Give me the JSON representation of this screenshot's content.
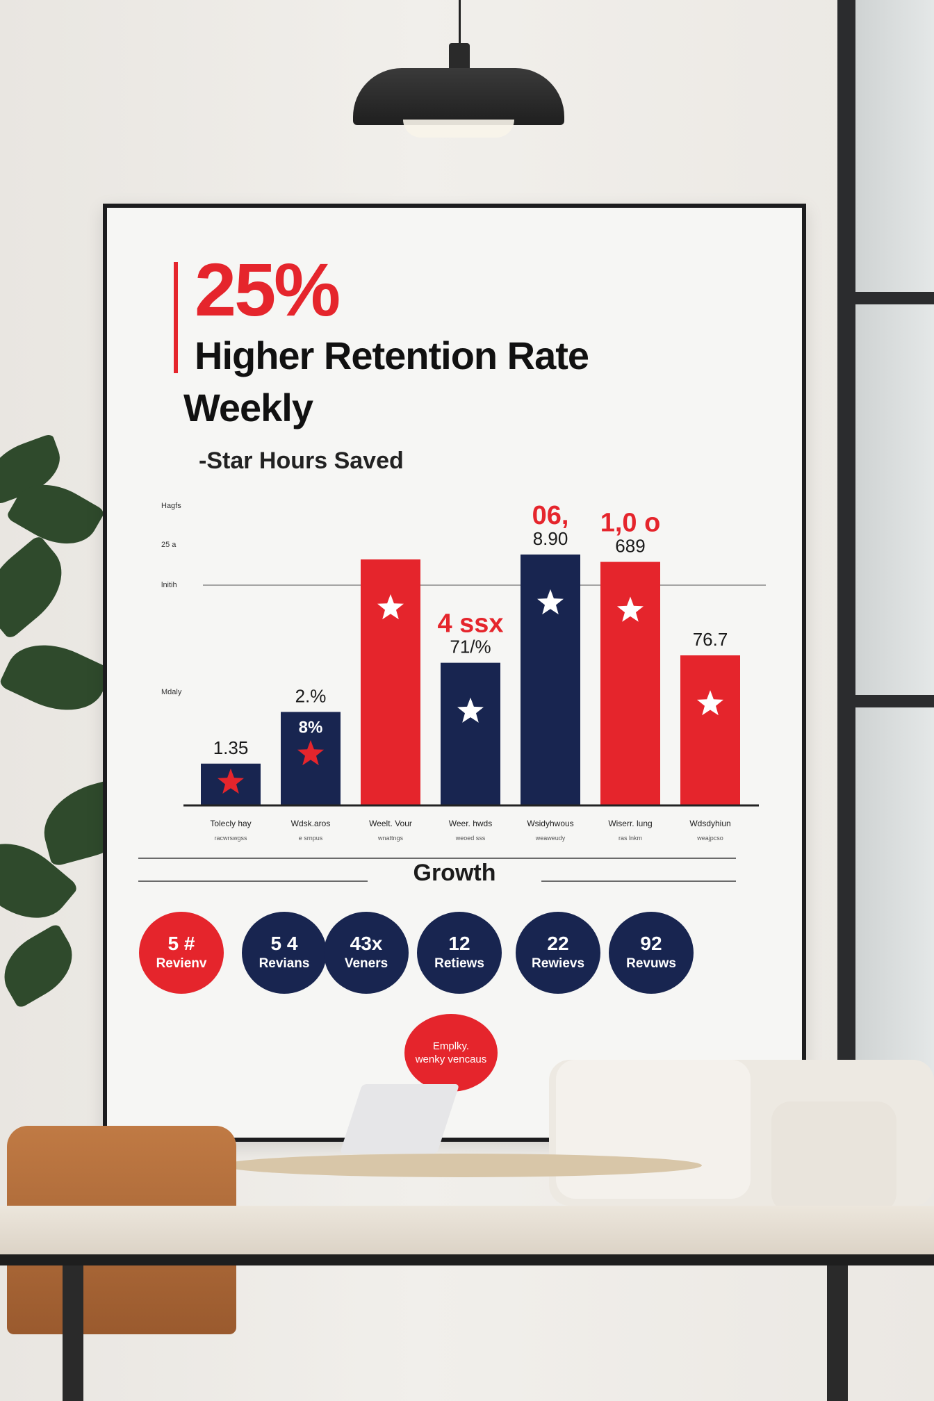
{
  "poster": {
    "headline": "25%",
    "subtitle_line1": "Higher Retention Rate",
    "subtitle_line2": "Weekly",
    "chart_title": "-Star Hours Saved",
    "growth_label": "Growth",
    "bubble_line1": "Emplky.",
    "bubble_line2": "wenky vencaus"
  },
  "colors": {
    "red": "#e5252c",
    "navy": "#182550",
    "ink": "#111111"
  },
  "chart_data": {
    "type": "bar",
    "ytick_labels": [
      "Hagfs",
      "25 a",
      "lnitih",
      "Mdaly"
    ],
    "categories": [
      "Tolecly hay",
      "Wdsk.aros",
      "Weelt. Vour",
      "Weer. hwds",
      "Wsidyhwous",
      "Wiserr. lung",
      "Wdsdyhiun"
    ],
    "subcategories": [
      "racwrswgss",
      "e srnpus",
      "wnattngs",
      "weoed sss",
      "weaweudy",
      "ras lnkm",
      "weajpcso"
    ],
    "values": [
      17,
      38,
      100,
      58,
      102,
      99,
      61
    ],
    "bar_colors": [
      "navy",
      "navy",
      "red",
      "navy",
      "navy",
      "red",
      "red"
    ],
    "star_colors": [
      "red",
      "red",
      "white",
      "white",
      "white",
      "white",
      "white"
    ],
    "value_labels": [
      "1.35",
      "2.%",
      "",
      "71/%",
      "8.90",
      "689",
      "76.7"
    ],
    "inside_labels": [
      "",
      "8%",
      "",
      "",
      "",
      "",
      ""
    ],
    "top_red_labels": [
      "",
      "",
      "",
      "4 ssx",
      "06,",
      "1,0 o",
      ""
    ],
    "ylim": [
      0,
      110
    ],
    "grid": true
  },
  "stats": [
    {
      "value": "5 #",
      "label": "Revienv",
      "color": "red"
    },
    {
      "value": "5 4",
      "label": "Revians",
      "color": "navy"
    },
    {
      "value": "43x",
      "label": "Veners",
      "color": "navy"
    },
    {
      "value": "12",
      "label": "Retiews",
      "color": "navy"
    },
    {
      "value": "22",
      "label": "Rewievs",
      "color": "navy"
    },
    {
      "value": "92",
      "label": "Revuws",
      "color": "navy"
    }
  ]
}
